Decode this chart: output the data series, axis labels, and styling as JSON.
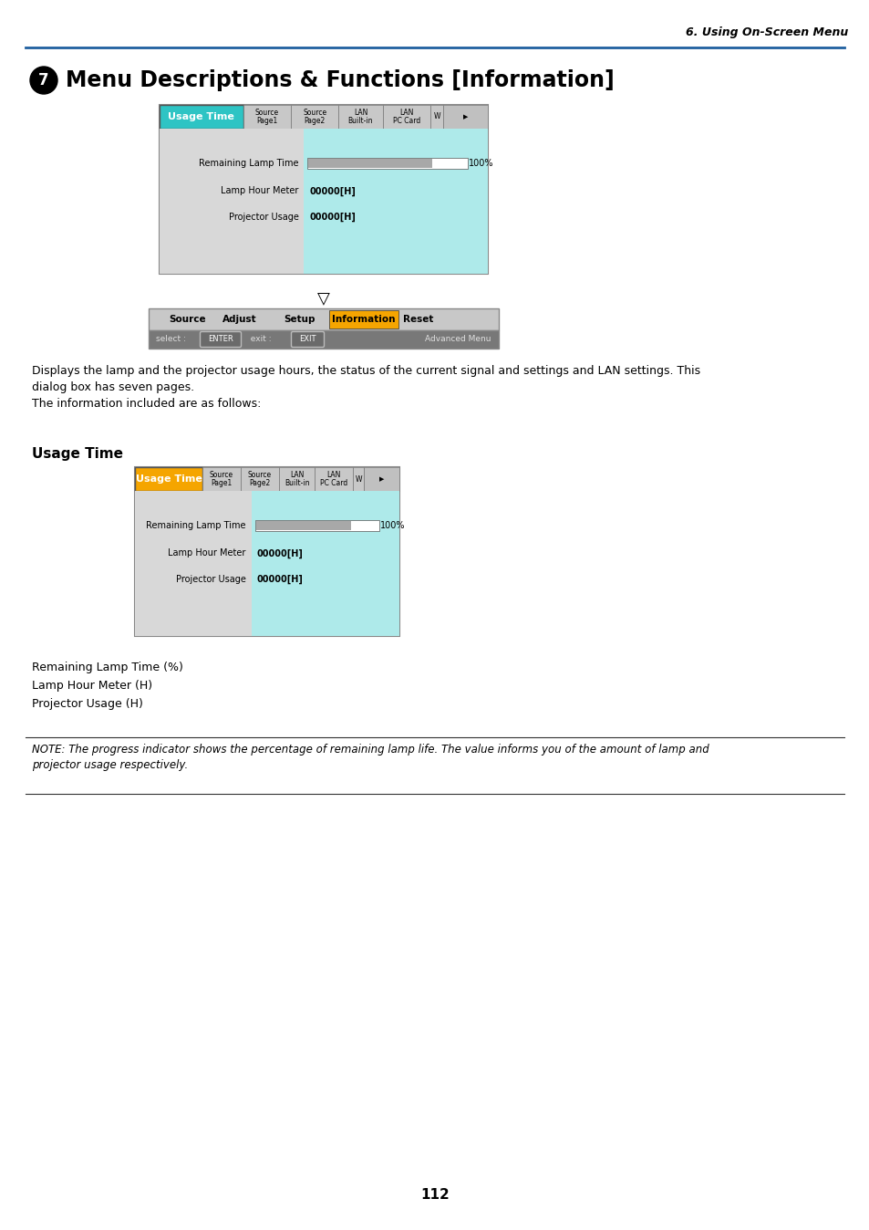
{
  "page_header_right": "6. Using On-Screen Menu",
  "section_title_num": "❗",
  "section_title": "Menu Descriptions & Functions [Information]",
  "header_line_color": "#1f5f9f",
  "body_text1": "Displays the lamp and the projector usage hours, the status of the current signal and settings and LAN settings. This\ndialog box has seven pages.\nThe information included are as follows:",
  "subsection_title": "Usage Time",
  "bullet_items": [
    "Remaining Lamp Time (%)",
    "Lamp Hour Meter (H)",
    "Projector Usage (H)"
  ],
  "note_text": "NOTE: The progress indicator shows the percentage of remaining lamp life. The value informs you of the amount of lamp and\nprojector usage respectively.",
  "page_number": "112",
  "usage_time_tab_color_top": "#2ec4c4",
  "usage_time_tab_color_bottom": "#f5a500",
  "information_tab_color": "#f5a500",
  "dialog_bg_left": "#d8d8d8",
  "dialog_bg_right": "#aeeaea",
  "progress_bar_bg": "#a8a8a8",
  "tab_bar_bg": "#c0c0c0",
  "bottom_bar1_bg": "#c0c0c0",
  "bottom_bar2_bg": "#787878"
}
